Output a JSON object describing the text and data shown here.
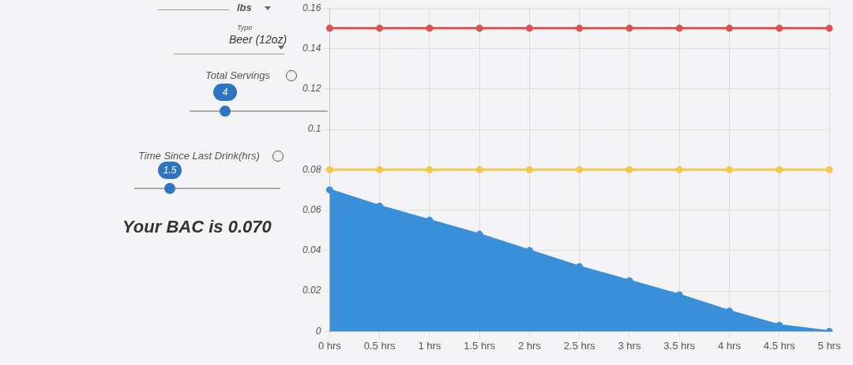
{
  "chart_data": {
    "type": "area",
    "categories": [
      "0 hrs",
      "0.5 hrs",
      "1 hrs",
      "1.5 hrs",
      "2 hrs",
      "2.5 hrs",
      "3 hrs",
      "3.5 hrs",
      "4 hrs",
      "4.5 hrs",
      "5 hrs"
    ],
    "series": [
      {
        "type": "line",
        "color": "#d9534f",
        "values": [
          0.15,
          0.15,
          0.15,
          0.15,
          0.15,
          0.15,
          0.15,
          0.15,
          0.15,
          0.15,
          0.15
        ]
      },
      {
        "type": "line",
        "color": "#f2c94c",
        "values": [
          0.08,
          0.08,
          0.08,
          0.08,
          0.08,
          0.08,
          0.08,
          0.08,
          0.08,
          0.08,
          0.08
        ]
      },
      {
        "color": "#3a8fd9",
        "values": [
          0.07,
          0.062,
          0.055,
          0.048,
          0.04,
          0.032,
          0.025,
          0.018,
          0.01,
          0.003,
          0
        ]
      }
    ],
    "ylim": [
      0,
      0.16
    ],
    "yticks": [
      0,
      0.02,
      0.04,
      0.06,
      0.08,
      0.1,
      0.12,
      0.14,
      0.16
    ],
    "grid": true,
    "marker": "circle",
    "annotations": [
      "lbs",
      "Type",
      "Beer (12oz)",
      "Total Servings",
      "4",
      "Time Since Last Drink(hrs)",
      "1.5",
      "Your BAC is 0.070"
    ]
  }
}
